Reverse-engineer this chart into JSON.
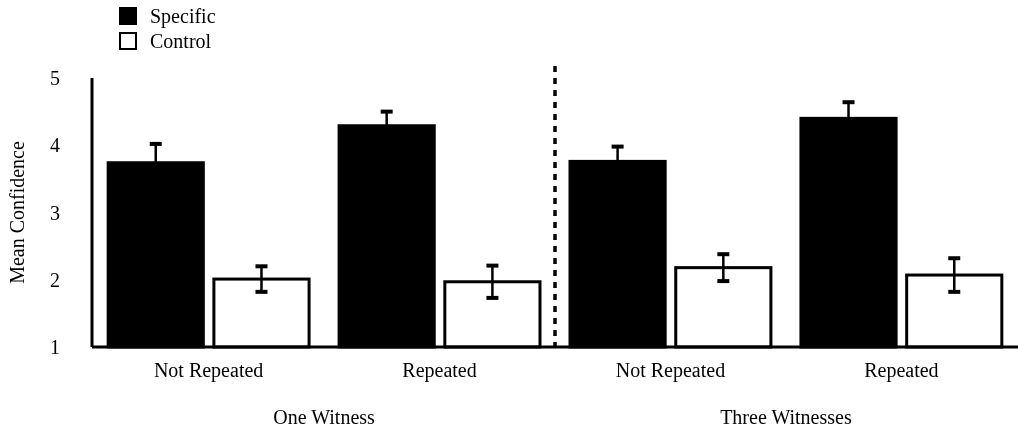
{
  "chart_data": {
    "type": "bar",
    "ylabel": "Mean Confidence",
    "categories": [
      "Not Repeated",
      "Repeated",
      "Not Repeated",
      "Repeated"
    ],
    "series": [
      {
        "name": "Specific",
        "color": "#000000",
        "values": [
          3.74,
          4.29,
          3.76,
          4.4
        ],
        "errors": [
          0.28,
          0.21,
          0.22,
          0.24
        ]
      },
      {
        "name": "Control",
        "color": "#ffffff",
        "values": [
          2.01,
          1.97,
          2.18,
          2.07
        ],
        "errors": [
          0.19,
          0.24,
          0.2,
          0.25
        ]
      }
    ],
    "ylim": [
      1,
      5
    ],
    "yticks": [
      1,
      2,
      3,
      4,
      5
    ],
    "grid": false,
    "legend": "top left",
    "annotations": [
      "One Witness",
      "Three Witnesses"
    ]
  }
}
